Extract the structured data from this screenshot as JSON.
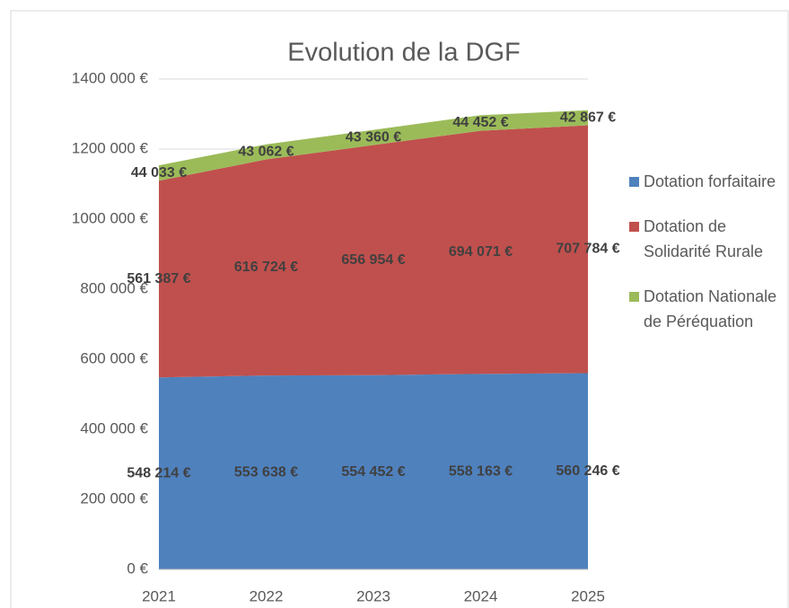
{
  "chart_data": {
    "type": "stacked_area",
    "title": "Evolution de la DGF",
    "categories": [
      "2021",
      "2022",
      "2023",
      "2024",
      "2025"
    ],
    "series": [
      {
        "name": "Dotation forfaitaire",
        "color": "#4f81bd",
        "values": [
          548214,
          553638,
          554452,
          558163,
          560246
        ],
        "value_labels": [
          "548 214 €",
          "553 638 €",
          "554 452 €",
          "558 163 €",
          "560 246 €"
        ]
      },
      {
        "name": "Dotation de Solidarité Rurale",
        "color": "#c0504d",
        "values": [
          561387,
          616724,
          656954,
          694071,
          707784
        ],
        "value_labels": [
          "561 387 €",
          "616 724 €",
          "656 954 €",
          "694 071 €",
          "707 784 €"
        ]
      },
      {
        "name": "Dotation Nationale de Péréquation",
        "color": "#9bbb59",
        "values": [
          44033,
          43062,
          43360,
          44452,
          42867
        ],
        "value_labels": [
          "44 033 €",
          "43 062 €",
          "43 360 €",
          "44 452 €",
          "42 867 €"
        ]
      }
    ],
    "ylim": [
      0,
      1400000
    ],
    "yticks": [
      {
        "value": 0,
        "label": "0 €"
      },
      {
        "value": 200000,
        "label": "200 000 €"
      },
      {
        "value": 400000,
        "label": "400 000 €"
      },
      {
        "value": 600000,
        "label": "600 000 €"
      },
      {
        "value": 800000,
        "label": "800 000 €"
      },
      {
        "value": 1000000,
        "label": "1000 000 €"
      },
      {
        "value": 1200000,
        "label": "1200 000 €"
      },
      {
        "value": 1400000,
        "label": "1400 000 €"
      }
    ],
    "grid": true,
    "legend": "right"
  }
}
